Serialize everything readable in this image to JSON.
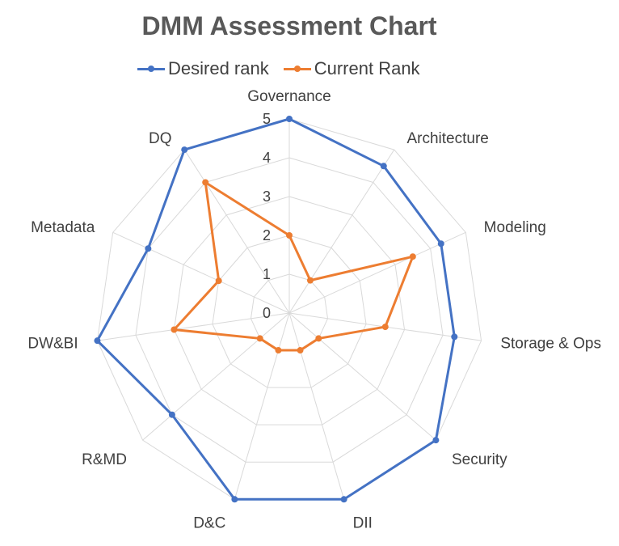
{
  "chart_data": {
    "type": "radar",
    "title": "DMM Assessment Chart",
    "categories": [
      "Governance",
      "Architecture",
      "Modeling",
      "Storage & Ops",
      "Security",
      "DII",
      "D&C",
      "R&MD",
      "DW&BI",
      "Metadata",
      "DQ"
    ],
    "rlim": [
      0,
      5
    ],
    "ticks": [
      "0",
      "1",
      "2",
      "3",
      "4",
      "5"
    ],
    "grid": true,
    "legend_position": "top",
    "series": [
      {
        "name": "Desired rank",
        "color": "#4472C4",
        "values": [
          5,
          4.5,
          4.3,
          4.3,
          5,
          5,
          5,
          4,
          5,
          4,
          5
        ]
      },
      {
        "name": "Current Rank",
        "color": "#ED7D31",
        "values": [
          2,
          1,
          3.5,
          2.5,
          1,
          1,
          1,
          1,
          3,
          2,
          4
        ]
      }
    ]
  }
}
